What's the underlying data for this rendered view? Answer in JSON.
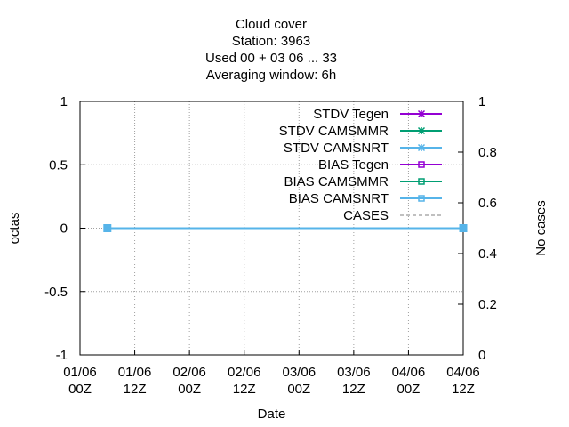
{
  "chart_data": {
    "type": "line",
    "title_lines": [
      "Cloud cover",
      "Station:     3963",
      "Used  00 + 03 06 ... 33",
      "Averaging window:  6h"
    ],
    "xlabel": "Date",
    "ylabel": "octas",
    "y2label": "No cases",
    "x_ticks": [
      {
        "top": "01/06",
        "bottom": "00Z"
      },
      {
        "top": "01/06",
        "bottom": "12Z"
      },
      {
        "top": "02/06",
        "bottom": "00Z"
      },
      {
        "top": "02/06",
        "bottom": "12Z"
      },
      {
        "top": "03/06",
        "bottom": "00Z"
      },
      {
        "top": "03/06",
        "bottom": "12Z"
      },
      {
        "top": "04/06",
        "bottom": "00Z"
      },
      {
        "top": "04/06",
        "bottom": "12Z"
      }
    ],
    "xlim": [
      0,
      84
    ],
    "ylim": [
      -1,
      1
    ],
    "yticks": [
      "1",
      "0.5",
      "0",
      "-0.5",
      "-1"
    ],
    "y2lim": [
      0,
      1
    ],
    "y2ticks": [
      "1",
      "0.8",
      "0.6",
      "0.4",
      "0.2",
      "0"
    ],
    "grid": true,
    "legend_position": "top-right",
    "series": [
      {
        "name": "STDV Tegen",
        "color": "#9400d3",
        "marker": "x-cross",
        "dash": "solid",
        "x": [],
        "y": []
      },
      {
        "name": "STDV CAMSMMR",
        "color": "#009e73",
        "marker": "x-cross",
        "dash": "solid",
        "x": [],
        "y": []
      },
      {
        "name": "STDV CAMSNRT",
        "color": "#56b4e9",
        "marker": "x-cross",
        "dash": "solid",
        "x": [],
        "y": []
      },
      {
        "name": "BIAS Tegen",
        "color": "#9400d3",
        "marker": "open-square",
        "dash": "solid",
        "x": [],
        "y": []
      },
      {
        "name": "BIAS CAMSMMR",
        "color": "#009e73",
        "marker": "open-square",
        "dash": "solid",
        "x": [],
        "y": []
      },
      {
        "name": "BIAS CAMSNRT",
        "color": "#56b4e9",
        "marker": "open-square",
        "dash": "solid",
        "x": [
          6,
          84
        ],
        "y": [
          0,
          0
        ]
      },
      {
        "name": "CASES",
        "color": "#808080",
        "marker": "none",
        "dash": "dashed",
        "x": [],
        "y": []
      }
    ]
  }
}
